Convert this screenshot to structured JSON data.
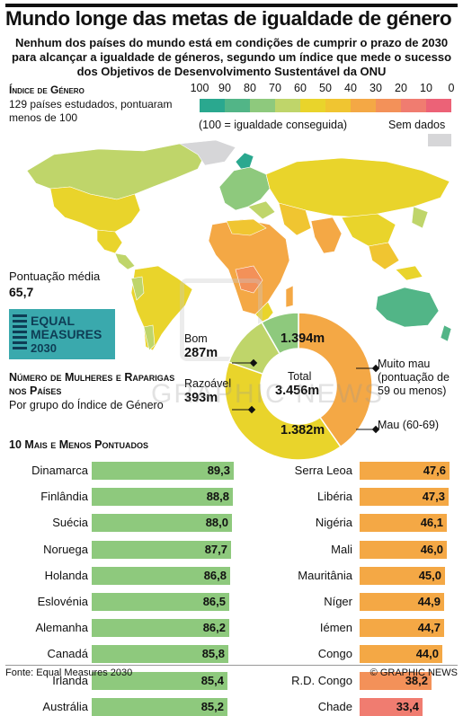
{
  "header": {
    "title": "Mundo longe das metas de igualdade de género",
    "subtitle": "Nenhum dos países do mundo está em condições de cumprir o prazo de 2030 para alcançar a igualdade de géneros, segundo um índice que mede o sucesso dos Objetivos de Desenvolvimento Sustentável da ONU"
  },
  "legend": {
    "heading": "Índice de Género",
    "subheading": "129 países estudados, pontuaram menos de 100",
    "scale_values": [
      "100",
      "90",
      "80",
      "70",
      "60",
      "50",
      "40",
      "30",
      "20",
      "10",
      "0"
    ],
    "scale_colors": [
      "#2aa88f",
      "#52b587",
      "#8ec97d",
      "#bfd56a",
      "#e9d42b",
      "#f0c531",
      "#f4a845",
      "#f39159",
      "#f07c70",
      "#ec6277"
    ],
    "scale_note": "(100 = igualdade conseguida)",
    "no_data_label": "Sem dados",
    "no_data_color": "#d6d6d8"
  },
  "average": {
    "label": "Pontuação média",
    "value": "65,7"
  },
  "logo": {
    "line1": "EQUAL",
    "line2": "MEASURES",
    "line3": "2030"
  },
  "women": {
    "heading": "Número de Mulheres e Raparigas nos Países",
    "subheading": "Por grupo do Índice de Género"
  },
  "chart_data": [
    {
      "type": "pie",
      "title": "Número de Mulheres e Raparigas nos Países",
      "center_label": "Total",
      "center_value": "3.456m",
      "slices": [
        {
          "name": "Muito mau (pontuação de 59 ou menos)",
          "value_label": "1.394m",
          "value": 1394,
          "color": "#f4a845"
        },
        {
          "name": "Mau (60-69)",
          "value_label": "1.382m",
          "value": 1382,
          "color": "#e9d42b"
        },
        {
          "name": "Razoável",
          "value_label": "393m",
          "value": 393,
          "color": "#bfd56a"
        },
        {
          "name": "Bom",
          "value_label": "287m",
          "value": 287,
          "color": "#8ec97d"
        }
      ],
      "labels": {
        "muito_mau": "Muito mau (pontuação de 59 ou menos)",
        "mau": "Mau (60-69)",
        "razoavel": "Razoável",
        "bom": "Bom"
      }
    },
    {
      "type": "bar",
      "title": "10 Mais e Menos Pontuados",
      "series": [
        {
          "name": "Mais pontuados",
          "color": "#8ec97d",
          "categories": [
            "Dinamarca",
            "Finlândia",
            "Suécia",
            "Noruega",
            "Holanda",
            "Eslovénia",
            "Alemanha",
            "Canadá",
            "Irlanda",
            "Austrália"
          ],
          "values": [
            89.3,
            88.8,
            88.0,
            87.7,
            86.8,
            86.5,
            86.2,
            85.8,
            85.4,
            85.2
          ],
          "labels": [
            "89,3",
            "88,8",
            "88,0",
            "87,7",
            "86,8",
            "86,5",
            "86,2",
            "85,8",
            "85,4",
            "85,2"
          ]
        },
        {
          "name": "Menos pontuados",
          "categories": [
            "Serra Leoa",
            "Libéria",
            "Nigéria",
            "Mali",
            "Mauritânia",
            "Níger",
            "Iémen",
            "Congo",
            "R.D. Congo",
            "Chade"
          ],
          "values": [
            47.6,
            47.3,
            46.1,
            46.0,
            45.0,
            44.9,
            44.7,
            44.0,
            38.2,
            33.4
          ],
          "labels": [
            "47,6",
            "47,3",
            "46,1",
            "46,0",
            "45,0",
            "44,9",
            "44,7",
            "44,0",
            "38,2",
            "33,4"
          ],
          "colors": [
            "#f4a845",
            "#f4a845",
            "#f4a845",
            "#f4a845",
            "#f4a845",
            "#f4a845",
            "#f4a845",
            "#f4a845",
            "#f39159",
            "#f07c70"
          ]
        }
      ]
    }
  ],
  "footer": {
    "source": "Fonte: Equal Measures 2030",
    "credit": "© GRAPHIC NEWS"
  },
  "watermark": "GRAPHIC NEWS"
}
